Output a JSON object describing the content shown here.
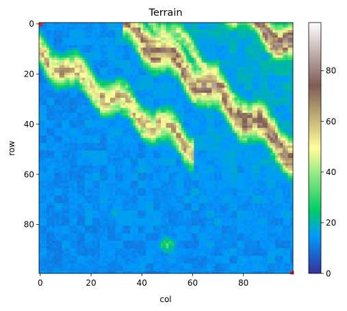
{
  "chart_data": {
    "type": "heatmap",
    "title": "Terrain",
    "xlabel": "col",
    "ylabel": "row",
    "colormap": "terrain",
    "grid_shape": [
      100,
      100
    ],
    "xlim": [
      0,
      99
    ],
    "ylim": [
      0,
      99
    ],
    "x_ticks": [
      0,
      20,
      40,
      60,
      80
    ],
    "y_ticks": [
      0,
      20,
      40,
      60,
      80
    ],
    "colorbar": {
      "range": [
        0,
        99
      ],
      "ticks": [
        0,
        20,
        40,
        60,
        80
      ]
    },
    "grid": false,
    "ridges": [
      {
        "description": "upper-left ridge",
        "row_at_col_0": 12,
        "slope_rows_per_col": 0.62,
        "width_rows": 7,
        "peak_value": 70,
        "col_range": [
          0,
          58
        ]
      },
      {
        "description": "central ridge",
        "row_at_col_0": -26,
        "slope_rows_per_col": 0.78,
        "width_rows": 8,
        "peak_value": 85,
        "col_range": [
          35,
          99
        ]
      },
      {
        "description": "top-right ridge",
        "row_at_col_0": -62,
        "slope_rows_per_col": 0.72,
        "width_rows": 7,
        "peak_value": 90,
        "col_range": [
          70,
          99
        ]
      },
      {
        "description": "top-center ridge",
        "row_at_col_0": -40,
        "slope_rows_per_col": 0.85,
        "width_rows": 5,
        "peak_value": 55,
        "col_range": [
          38,
          68
        ]
      }
    ],
    "local_peaks": [
      {
        "row": 88,
        "col": 50,
        "value": 35
      },
      {
        "row": 75,
        "col": 30,
        "value": 22
      }
    ],
    "highlight_points": [
      {
        "row": 0,
        "col": 0,
        "color": "#d62728"
      },
      {
        "row": 99,
        "col": 99,
        "color": "#d62728"
      }
    ]
  }
}
